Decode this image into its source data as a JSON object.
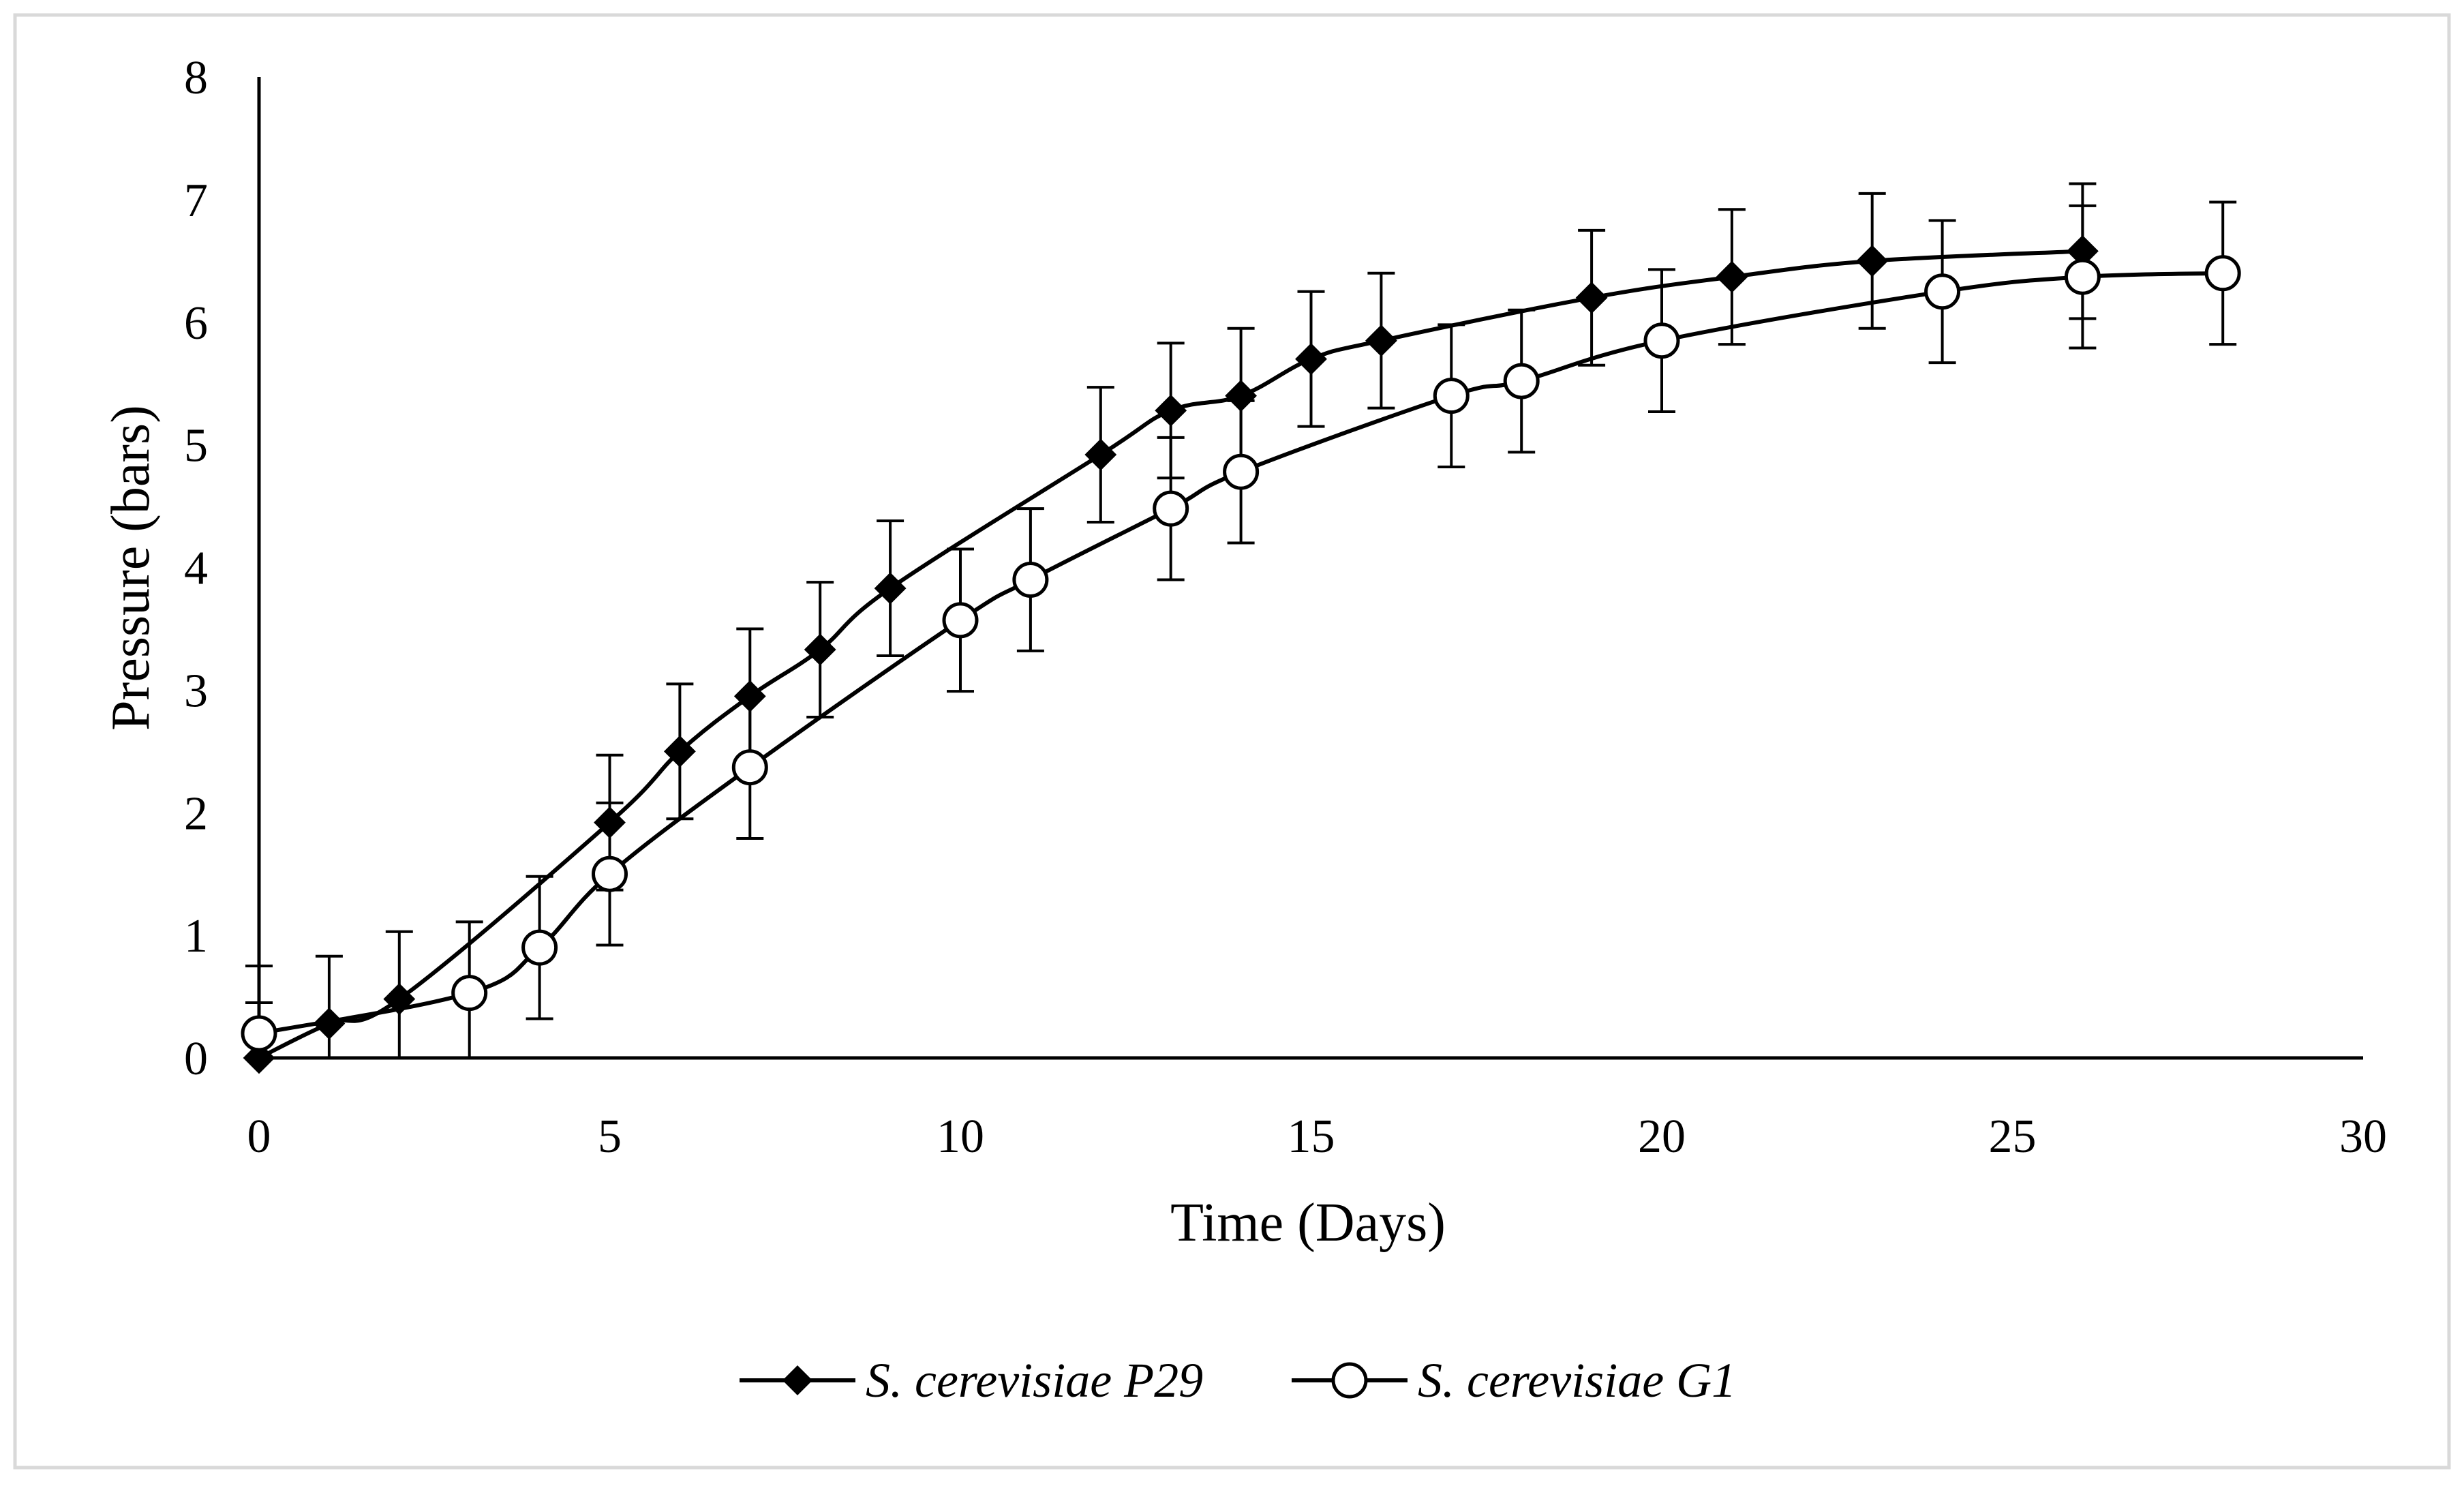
{
  "chart_data": {
    "type": "line",
    "title": "",
    "xlabel": "Time (Days)",
    "ylabel": "Pressure (bars)",
    "xlim": [
      0,
      30
    ],
    "ylim": [
      0,
      8
    ],
    "xticks": [
      0,
      5,
      10,
      15,
      20,
      25,
      30
    ],
    "yticks": [
      0,
      1,
      2,
      3,
      4,
      5,
      6,
      7,
      8
    ],
    "grid": false,
    "legend_position": "bottom",
    "series": [
      {
        "name": "S. cerevisiae P29",
        "marker": "filled-diamond",
        "color": "#000000",
        "x": [
          0,
          1,
          2,
          5,
          6,
          7,
          8,
          9,
          12,
          13,
          14,
          15,
          16,
          19,
          21,
          23,
          26
        ],
        "y": [
          0.0,
          0.28,
          0.48,
          1.92,
          2.5,
          2.95,
          3.33,
          3.83,
          4.92,
          5.28,
          5.4,
          5.7,
          5.85,
          6.2,
          6.37,
          6.5,
          6.58
        ],
        "error": [
          0.45,
          0.55,
          0.55,
          0.55,
          0.55,
          0.55,
          0.55,
          0.55,
          0.55,
          0.55,
          0.55,
          0.55,
          0.55,
          0.55,
          0.55,
          0.55,
          0.55
        ]
      },
      {
        "name": "S. cerevisiae G1",
        "marker": "open-circle",
        "color": "#000000",
        "x": [
          0,
          3,
          4,
          5,
          7,
          10,
          11,
          13,
          14,
          17,
          18,
          20,
          24,
          26,
          28
        ],
        "y": [
          0.2,
          0.53,
          0.9,
          1.5,
          2.37,
          3.57,
          3.9,
          4.48,
          4.78,
          5.4,
          5.52,
          5.85,
          6.25,
          6.37,
          6.4
        ],
        "error": [
          0.55,
          0.58,
          0.58,
          0.58,
          0.58,
          0.58,
          0.58,
          0.58,
          0.58,
          0.58,
          0.58,
          0.58,
          0.58,
          0.58,
          0.58
        ]
      }
    ]
  }
}
